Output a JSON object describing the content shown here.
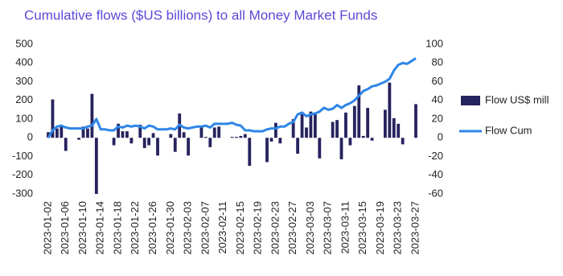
{
  "chart_data": {
    "type": "bar-line",
    "title": "Cumulative flows ($US billions) to all Money Market Funds",
    "categories": [
      "2023-01-02",
      null,
      null,
      null,
      "2023-01-06",
      null,
      null,
      null,
      "2023-01-10",
      null,
      null,
      null,
      "2023-01-14",
      null,
      null,
      null,
      "2023-01-18",
      null,
      null,
      null,
      "2023-01-22",
      null,
      null,
      null,
      "2023-01-26",
      null,
      null,
      null,
      "2023-01-30",
      null,
      null,
      null,
      "2023-02-03",
      null,
      null,
      null,
      "2023-02-07",
      null,
      null,
      null,
      "2023-02-11",
      null,
      null,
      null,
      "2023-02-15",
      null,
      null,
      null,
      "2023-02-19",
      null,
      null,
      null,
      "2023-02-23",
      null,
      null,
      null,
      "2023-02-27",
      null,
      null,
      null,
      "2023-03-03",
      null,
      null,
      null,
      "2023-03-07",
      null,
      null,
      null,
      "2023-03-11",
      null,
      null,
      null,
      "2023-03-15",
      null,
      null,
      null,
      "2023-03-19",
      null,
      null,
      null,
      "2023-03-23",
      null,
      null,
      null,
      "2023-03-27"
    ],
    "series": [
      {
        "name": "Flow US$ mill",
        "type": "bar",
        "color": "#27235e",
        "values": [
          30,
          205,
          50,
          60,
          -70,
          null,
          null,
          -10,
          60,
          50,
          235,
          -300,
          null,
          null,
          null,
          -40,
          75,
          35,
          35,
          -30,
          null,
          70,
          -55,
          -40,
          25,
          -95,
          null,
          null,
          20,
          -75,
          130,
          30,
          -95,
          null,
          null,
          60,
          5,
          -50,
          55,
          60,
          null,
          null,
          5,
          5,
          10,
          20,
          -150,
          null,
          null,
          null,
          -130,
          -20,
          80,
          -30,
          null,
          null,
          100,
          -85,
          135,
          55,
          140,
          130,
          -110,
          null,
          null,
          85,
          95,
          -115,
          135,
          -40,
          170,
          280,
          10,
          160,
          -15,
          null,
          null,
          150,
          295,
          105,
          75,
          -35,
          null,
          null,
          180
        ]
      },
      {
        "name": "Flow Cum",
        "type": "line",
        "axis": "y2",
        "color": "#2e86e8",
        "values": [
          0,
          8,
          12,
          13,
          11,
          10,
          10,
          10,
          10,
          12,
          13,
          20,
          9,
          9,
          8,
          8,
          12,
          11,
          13,
          12,
          13,
          12,
          10,
          13,
          12,
          9,
          9,
          9,
          10,
          9,
          14,
          11,
          10,
          11,
          12,
          12,
          13,
          11,
          15,
          15,
          15,
          15,
          16,
          14,
          13,
          8,
          8,
          7,
          7,
          7,
          9,
          10,
          10,
          12,
          12,
          15,
          17,
          25,
          27,
          23,
          25,
          26,
          28,
          32,
          30,
          31,
          35,
          32,
          35,
          37,
          40,
          45,
          50,
          52,
          55,
          56,
          58,
          60,
          63,
          72,
          78,
          80,
          79,
          82,
          85
        ]
      }
    ],
    "ylim": [
      -300,
      500
    ],
    "yticks": [
      -300,
      -200,
      -100,
      0,
      100,
      200,
      300,
      400,
      500
    ],
    "y2lim": [
      -60,
      100
    ],
    "y2ticks": [
      -60,
      -40,
      -20,
      0,
      20,
      40,
      60,
      80,
      100
    ],
    "grid": false,
    "legend": "right"
  }
}
